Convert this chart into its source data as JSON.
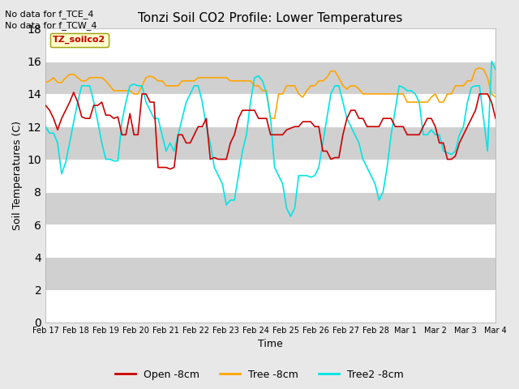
{
  "title": "Tonzi Soil CO2 Profile: Lower Temperatures",
  "ylabel": "Soil Temperatures (C)",
  "xlabel": "Time",
  "top_note1": "No data for f_TCE_4",
  "top_note2": "No data for f_TCW_4",
  "legend_box_label": "TZ_soilco2",
  "ylim": [
    0,
    18
  ],
  "yticks": [
    0,
    2,
    4,
    6,
    8,
    10,
    12,
    14,
    16,
    18
  ],
  "x_tick_labels": [
    "Feb 17",
    "Feb 18",
    "Feb 19",
    "Feb 20",
    "Feb 21",
    "Feb 22",
    "Feb 23",
    "Feb 24",
    "Feb 25",
    "Feb 26",
    "Feb 27",
    "Feb 28",
    "Mar 1",
    "Mar 2",
    "Mar 3",
    "Mar 4"
  ],
  "background_color": "#e8e8e8",
  "plot_bg_light": "#e8e8e8",
  "plot_bg_dark": "#d0d0d0",
  "legend_entries": [
    "Open -8cm",
    "Tree -8cm",
    "Tree2 -8cm"
  ],
  "line_colors": [
    "#cc0000",
    "#ffa500",
    "#00e5e5"
  ],
  "open_8cm": [
    13.3,
    13.0,
    12.5,
    11.8,
    12.5,
    13.0,
    13.5,
    14.1,
    13.5,
    12.6,
    12.5,
    12.5,
    13.3,
    13.3,
    13.5,
    12.7,
    12.7,
    12.5,
    12.6,
    11.5,
    11.5,
    12.8,
    11.5,
    11.5,
    14.0,
    14.0,
    13.5,
    13.5,
    9.5,
    9.5,
    9.5,
    9.4,
    9.5,
    11.5,
    11.5,
    11.0,
    11.0,
    11.5,
    12.0,
    12.0,
    12.5,
    10.0,
    10.1,
    10.0,
    10.0,
    10.0,
    11.0,
    11.5,
    12.5,
    13.0,
    13.0,
    13.0,
    13.0,
    12.5,
    12.5,
    12.5,
    11.5,
    11.5,
    11.5,
    11.5,
    11.8,
    11.9,
    12.0,
    12.0,
    12.3,
    12.3,
    12.3,
    12.0,
    12.0,
    10.5,
    10.5,
    10.0,
    10.1,
    10.1,
    11.5,
    12.5,
    13.0,
    13.0,
    12.5,
    12.5,
    12.0,
    12.0,
    12.0,
    12.0,
    12.5,
    12.5,
    12.5,
    12.0,
    12.0,
    12.0,
    11.5,
    11.5,
    11.5,
    11.5,
    12.0,
    12.5,
    12.5,
    12.0,
    11.0,
    11.0,
    10.0,
    10.0,
    10.2,
    11.0,
    11.5,
    12.0,
    12.5,
    13.0,
    14.0,
    14.0,
    14.0,
    13.5,
    12.5
  ],
  "tree_8cm": [
    14.7,
    14.8,
    15.0,
    14.7,
    14.7,
    15.0,
    15.2,
    15.2,
    15.0,
    14.8,
    14.8,
    15.0,
    15.0,
    15.0,
    15.0,
    14.8,
    14.5,
    14.2,
    14.2,
    14.2,
    14.2,
    14.2,
    14.0,
    14.0,
    14.5,
    15.0,
    15.1,
    15.0,
    14.8,
    14.8,
    14.5,
    14.5,
    14.5,
    14.5,
    14.8,
    14.8,
    14.8,
    14.8,
    15.0,
    15.0,
    15.0,
    15.0,
    15.0,
    15.0,
    15.0,
    15.0,
    14.8,
    14.8,
    14.8,
    14.8,
    14.8,
    14.8,
    14.5,
    14.5,
    14.2,
    14.2,
    12.5,
    12.5,
    14.0,
    14.0,
    14.5,
    14.5,
    14.5,
    14.0,
    13.8,
    14.2,
    14.5,
    14.5,
    14.8,
    14.8,
    15.0,
    15.4,
    15.4,
    15.0,
    14.5,
    14.3,
    14.5,
    14.5,
    14.3,
    14.0,
    14.0,
    14.0,
    14.0,
    14.0,
    14.0,
    14.0,
    14.0,
    14.0,
    14.0,
    14.0,
    13.5,
    13.5,
    13.5,
    13.5,
    13.5,
    13.5,
    13.8,
    14.0,
    13.5,
    13.5,
    14.0,
    14.0,
    14.5,
    14.5,
    14.5,
    14.8,
    14.8,
    15.5,
    15.6,
    15.5,
    15.0,
    14.0,
    13.8
  ],
  "tree2_8cm": [
    12.0,
    11.6,
    11.6,
    11.0,
    9.1,
    9.8,
    11.0,
    12.3,
    13.5,
    14.5,
    14.5,
    14.5,
    13.5,
    12.3,
    11.0,
    10.0,
    10.0,
    9.9,
    9.9,
    12.3,
    13.5,
    14.5,
    14.6,
    14.5,
    14.5,
    13.5,
    13.0,
    12.5,
    12.5,
    11.5,
    10.5,
    11.0,
    10.5,
    11.5,
    12.5,
    13.5,
    14.0,
    14.5,
    14.5,
    13.5,
    12.0,
    11.0,
    9.5,
    9.0,
    8.5,
    7.2,
    7.5,
    7.5,
    9.0,
    10.5,
    11.5,
    13.5,
    15.0,
    15.1,
    14.8,
    14.0,
    12.5,
    9.5,
    9.0,
    8.5,
    7.0,
    6.5,
    7.0,
    9.0,
    9.0,
    9.0,
    8.9,
    9.0,
    9.5,
    11.0,
    12.5,
    14.0,
    14.5,
    14.5,
    13.5,
    12.5,
    12.0,
    11.5,
    11.0,
    10.0,
    9.5,
    9.0,
    8.5,
    7.5,
    8.0,
    9.5,
    11.5,
    13.0,
    14.5,
    14.4,
    14.2,
    14.2,
    14.0,
    13.5,
    11.5,
    11.5,
    11.8,
    11.5,
    11.5,
    10.5,
    10.4,
    10.3,
    10.5,
    11.5,
    12.0,
    13.5,
    14.4,
    14.5,
    14.5,
    12.5,
    10.5,
    16.0,
    15.5
  ]
}
